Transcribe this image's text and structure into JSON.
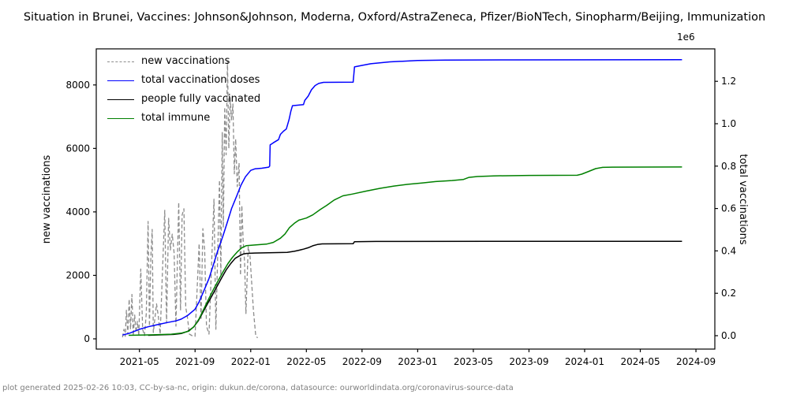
{
  "title": "Situation in Brunei, Vaccines: Johnson&Johnson, Moderna, Oxford/AstraZeneca, Pfizer/BioNTech, Sinopharm/Beijing, Immunization",
  "footer": "plot generated 2025-02-26 10:03, CC-by-sa-nc, origin: dukun.de/corona, datasource: ourworldindata.org/coronavirus-source-data",
  "legend": {
    "items": [
      {
        "label": "new vaccinations",
        "color": "#8c8c8c",
        "dashed": true
      },
      {
        "label": "total vaccination doses",
        "color": "#0000ff",
        "dashed": false
      },
      {
        "label": "people fully vaccinated",
        "color": "#000000",
        "dashed": false
      },
      {
        "label": "total immune",
        "color": "#008000",
        "dashed": false
      }
    ]
  },
  "chart_data": {
    "type": "line",
    "title": "Situation in Brunei",
    "x_axis": {
      "ticks": [
        "2021-05",
        "2021-09",
        "2022-01",
        "2022-05",
        "2022-09",
        "2023-01",
        "2023-05",
        "2023-09",
        "2024-01",
        "2024-05",
        "2024-09"
      ]
    },
    "y_left": {
      "label": "new vaccinations",
      "ticks": [
        0,
        2000,
        4000,
        6000,
        8000
      ],
      "range": [
        0,
        9150
      ]
    },
    "y_right": {
      "label": "total vaccinations",
      "offset_label": "1e6",
      "ticks": [
        0.0,
        0.2,
        0.4,
        0.6,
        0.8,
        1.0,
        1.2
      ],
      "range": [
        0,
        1.37
      ],
      "unit": "1e6"
    },
    "grid": false,
    "legend_position": "upper left",
    "series": [
      {
        "name": "new vaccinations",
        "axis": "left",
        "color": "#8c8c8c",
        "style": "dashed",
        "data": [
          [
            "2021-03-25",
            50
          ],
          [
            "2021-03-28",
            300
          ],
          [
            "2021-03-31",
            80
          ],
          [
            "2021-04-03",
            900
          ],
          [
            "2021-04-06",
            150
          ],
          [
            "2021-04-09",
            1250
          ],
          [
            "2021-04-12",
            300
          ],
          [
            "2021-04-15",
            1400
          ],
          [
            "2021-04-18",
            100
          ],
          [
            "2021-04-21",
            750
          ],
          [
            "2021-04-24",
            200
          ],
          [
            "2021-04-27",
            550
          ],
          [
            "2021-04-30",
            100
          ],
          [
            "2021-05-04",
            2200
          ],
          [
            "2021-05-08",
            300
          ],
          [
            "2021-05-12",
            100
          ],
          [
            "2021-05-16",
            800
          ],
          [
            "2021-05-20",
            3700
          ],
          [
            "2021-05-23",
            400
          ],
          [
            "2021-05-26",
            2600
          ],
          [
            "2021-05-29",
            3450
          ],
          [
            "2021-06-01",
            200
          ],
          [
            "2021-06-08",
            1100
          ],
          [
            "2021-06-12",
            700
          ],
          [
            "2021-06-16",
            150
          ],
          [
            "2021-06-26",
            4050
          ],
          [
            "2021-06-30",
            500
          ],
          [
            "2021-07-04",
            3800
          ],
          [
            "2021-07-08",
            2800
          ],
          [
            "2021-07-12",
            3300
          ],
          [
            "2021-07-16",
            2700
          ],
          [
            "2021-07-20",
            400
          ],
          [
            "2021-07-26",
            4300
          ],
          [
            "2021-07-30",
            900
          ],
          [
            "2021-08-03",
            3900
          ],
          [
            "2021-08-07",
            4100
          ],
          [
            "2021-08-11",
            1000
          ],
          [
            "2021-08-15",
            650
          ],
          [
            "2021-08-19",
            150
          ],
          [
            "2021-08-25",
            100
          ],
          [
            "2021-09-01",
            80
          ],
          [
            "2021-09-10",
            3000
          ],
          [
            "2021-09-14",
            600
          ],
          [
            "2021-09-18",
            3470
          ],
          [
            "2021-09-22",
            2800
          ],
          [
            "2021-09-26",
            400
          ],
          [
            "2021-10-01",
            150
          ],
          [
            "2021-10-12",
            4400
          ],
          [
            "2021-10-16",
            300
          ],
          [
            "2021-10-24",
            5000
          ],
          [
            "2021-10-27",
            2000
          ],
          [
            "2021-10-30",
            6500
          ],
          [
            "2021-11-02",
            3500
          ],
          [
            "2021-11-05",
            7300
          ],
          [
            "2021-11-08",
            5800
          ],
          [
            "2021-11-11",
            8740
          ],
          [
            "2021-11-14",
            6000
          ],
          [
            "2021-11-17",
            7600
          ],
          [
            "2021-11-20",
            6900
          ],
          [
            "2021-11-23",
            7400
          ],
          [
            "2021-11-26",
            5200
          ],
          [
            "2021-11-29",
            6300
          ],
          [
            "2021-12-02",
            4800
          ],
          [
            "2021-12-06",
            5540
          ],
          [
            "2021-12-09",
            2000
          ],
          [
            "2021-12-12",
            4200
          ],
          [
            "2021-12-15",
            3100
          ],
          [
            "2021-12-18",
            2400
          ],
          [
            "2021-12-21",
            800
          ],
          [
            "2021-12-26",
            2900
          ],
          [
            "2021-12-30",
            2600
          ],
          [
            "2022-01-03",
            1800
          ],
          [
            "2022-01-07",
            900
          ],
          [
            "2022-01-12",
            100
          ],
          [
            "2022-01-16",
            30
          ]
        ]
      },
      {
        "name": "total vaccination doses",
        "axis": "right",
        "color": "#0000ff",
        "style": "solid",
        "data": [
          [
            "2021-03-25",
            0.003
          ],
          [
            "2021-04-10",
            0.012
          ],
          [
            "2021-05-01",
            0.03
          ],
          [
            "2021-05-20",
            0.042
          ],
          [
            "2021-06-10",
            0.052
          ],
          [
            "2021-07-01",
            0.062
          ],
          [
            "2021-07-20",
            0.07
          ],
          [
            "2021-08-01",
            0.078
          ],
          [
            "2021-08-15",
            0.095
          ],
          [
            "2021-09-01",
            0.125
          ],
          [
            "2021-09-10",
            0.16
          ],
          [
            "2021-09-20",
            0.21
          ],
          [
            "2021-10-01",
            0.27
          ],
          [
            "2021-10-10",
            0.33
          ],
          [
            "2021-10-20",
            0.4
          ],
          [
            "2021-11-01",
            0.47
          ],
          [
            "2021-11-10",
            0.53
          ],
          [
            "2021-11-20",
            0.6
          ],
          [
            "2021-12-01",
            0.66
          ],
          [
            "2021-12-10",
            0.71
          ],
          [
            "2021-12-20",
            0.75
          ],
          [
            "2022-01-01",
            0.78
          ],
          [
            "2022-01-10",
            0.787
          ],
          [
            "2022-01-25",
            0.79
          ],
          [
            "2022-02-10",
            0.795
          ],
          [
            "2022-02-12",
            0.8
          ],
          [
            "2022-02-13",
            0.9
          ],
          [
            "2022-02-20",
            0.91
          ],
          [
            "2022-03-01",
            0.925
          ],
          [
            "2022-03-05",
            0.95
          ],
          [
            "2022-03-12",
            0.965
          ],
          [
            "2022-03-18",
            0.975
          ],
          [
            "2022-03-24",
            1.02
          ],
          [
            "2022-03-28",
            1.06
          ],
          [
            "2022-04-01",
            1.085
          ],
          [
            "2022-04-25",
            1.09
          ],
          [
            "2022-04-28",
            1.11
          ],
          [
            "2022-05-05",
            1.13
          ],
          [
            "2022-05-12",
            1.16
          ],
          [
            "2022-05-20",
            1.18
          ],
          [
            "2022-05-28",
            1.19
          ],
          [
            "2022-06-08",
            1.195
          ],
          [
            "2022-08-12",
            1.196
          ],
          [
            "2022-08-15",
            1.268
          ],
          [
            "2022-09-01",
            1.275
          ],
          [
            "2022-09-20",
            1.283
          ],
          [
            "2022-11-01",
            1.292
          ],
          [
            "2023-01-01",
            1.298
          ],
          [
            "2023-03-01",
            1.3
          ],
          [
            "2023-08-01",
            1.301
          ],
          [
            "2024-08-01",
            1.302
          ]
        ]
      },
      {
        "name": "people fully vaccinated",
        "axis": "right",
        "color": "#000000",
        "style": "solid",
        "data": [
          [
            "2021-05-20",
            0.002
          ],
          [
            "2021-06-20",
            0.004
          ],
          [
            "2021-07-15",
            0.006
          ],
          [
            "2021-08-01",
            0.01
          ],
          [
            "2021-08-15",
            0.02
          ],
          [
            "2021-08-28",
            0.04
          ],
          [
            "2021-09-08",
            0.07
          ],
          [
            "2021-09-18",
            0.11
          ],
          [
            "2021-09-28",
            0.15
          ],
          [
            "2021-10-08",
            0.19
          ],
          [
            "2021-10-18",
            0.23
          ],
          [
            "2021-10-28",
            0.27
          ],
          [
            "2021-11-08",
            0.31
          ],
          [
            "2021-11-18",
            0.34
          ],
          [
            "2021-11-28",
            0.365
          ],
          [
            "2021-12-08",
            0.378
          ],
          [
            "2021-12-15",
            0.385
          ],
          [
            "2021-12-22",
            0.388
          ],
          [
            "2022-01-10",
            0.39
          ],
          [
            "2022-02-10",
            0.391
          ],
          [
            "2022-03-20",
            0.393
          ],
          [
            "2022-04-05",
            0.398
          ],
          [
            "2022-04-15",
            0.403
          ],
          [
            "2022-04-25",
            0.408
          ],
          [
            "2022-05-05",
            0.415
          ],
          [
            "2022-05-15",
            0.424
          ],
          [
            "2022-05-25",
            0.43
          ],
          [
            "2022-06-05",
            0.433
          ],
          [
            "2022-08-12",
            0.434
          ],
          [
            "2022-08-15",
            0.4435
          ],
          [
            "2022-10-01",
            0.4445
          ],
          [
            "2023-06-01",
            0.445
          ],
          [
            "2024-08-01",
            0.445
          ]
        ]
      },
      {
        "name": "total immune",
        "axis": "right",
        "color": "#008000",
        "style": "solid",
        "data": [
          [
            "2021-04-08",
            0.002
          ],
          [
            "2021-06-01",
            0.004
          ],
          [
            "2021-07-10",
            0.007
          ],
          [
            "2021-08-01",
            0.012
          ],
          [
            "2021-08-18",
            0.022
          ],
          [
            "2021-08-30",
            0.045
          ],
          [
            "2021-09-10",
            0.08
          ],
          [
            "2021-09-20",
            0.125
          ],
          [
            "2021-09-30",
            0.17
          ],
          [
            "2021-10-10",
            0.215
          ],
          [
            "2021-10-20",
            0.255
          ],
          [
            "2021-11-01",
            0.3
          ],
          [
            "2021-11-12",
            0.34
          ],
          [
            "2021-11-22",
            0.37
          ],
          [
            "2021-12-02",
            0.395
          ],
          [
            "2021-12-12",
            0.415
          ],
          [
            "2021-12-22",
            0.425
          ],
          [
            "2022-01-10",
            0.428
          ],
          [
            "2022-02-05",
            0.432
          ],
          [
            "2022-02-20",
            0.44
          ],
          [
            "2022-03-05",
            0.46
          ],
          [
            "2022-03-15",
            0.48
          ],
          [
            "2022-03-25",
            0.51
          ],
          [
            "2022-04-05",
            0.53
          ],
          [
            "2022-04-15",
            0.545
          ],
          [
            "2022-05-01",
            0.555
          ],
          [
            "2022-05-15",
            0.57
          ],
          [
            "2022-06-01",
            0.595
          ],
          [
            "2022-06-15",
            0.615
          ],
          [
            "2022-07-01",
            0.64
          ],
          [
            "2022-07-20",
            0.66
          ],
          [
            "2022-08-10",
            0.668
          ],
          [
            "2022-09-10",
            0.682
          ],
          [
            "2022-10-10",
            0.695
          ],
          [
            "2022-11-10",
            0.706
          ],
          [
            "2022-12-10",
            0.714
          ],
          [
            "2023-01-10",
            0.72
          ],
          [
            "2023-02-10",
            0.727
          ],
          [
            "2023-03-15",
            0.732
          ],
          [
            "2023-04-10",
            0.737
          ],
          [
            "2023-04-22",
            0.747
          ],
          [
            "2023-05-10",
            0.751
          ],
          [
            "2023-06-15",
            0.754
          ],
          [
            "2023-09-01",
            0.756
          ],
          [
            "2023-12-15",
            0.757
          ],
          [
            "2023-12-25",
            0.762
          ],
          [
            "2024-01-10",
            0.775
          ],
          [
            "2024-01-25",
            0.788
          ],
          [
            "2024-02-10",
            0.794
          ],
          [
            "2024-03-01",
            0.795
          ],
          [
            "2024-08-01",
            0.796
          ]
        ]
      }
    ]
  }
}
